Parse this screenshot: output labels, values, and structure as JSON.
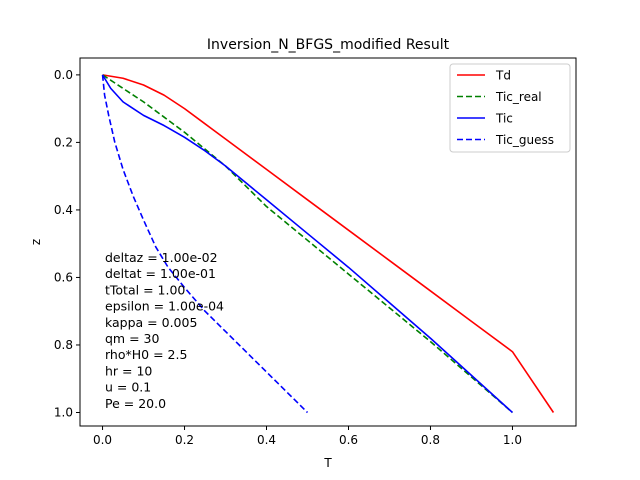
{
  "chart_data": {
    "type": "line",
    "title": "Inversion_N_BFGS_modified Result",
    "xlabel": "T",
    "ylabel": "z",
    "xlim": [
      -0.055,
      1.155
    ],
    "ylim": [
      1.04,
      -0.05
    ],
    "y_inverted": true,
    "grid": false,
    "legend_position": "top-right",
    "x_ticks": [
      {
        "value": 0.0,
        "label": "0.0"
      },
      {
        "value": 0.2,
        "label": "0.2"
      },
      {
        "value": 0.4,
        "label": "0.4"
      },
      {
        "value": 0.6,
        "label": "0.6"
      },
      {
        "value": 0.8,
        "label": "0.8"
      },
      {
        "value": 1.0,
        "label": "1.0"
      }
    ],
    "y_ticks": [
      {
        "value": 0.0,
        "label": "0.0"
      },
      {
        "value": 0.2,
        "label": "0.2"
      },
      {
        "value": 0.4,
        "label": "0.4"
      },
      {
        "value": 0.6,
        "label": "0.6"
      },
      {
        "value": 0.8,
        "label": "0.8"
      },
      {
        "value": 1.0,
        "label": "1.0"
      }
    ],
    "series": [
      {
        "name": "Td",
        "color": "#ff0000",
        "dash": "solid",
        "points": [
          [
            0.0,
            0.0
          ],
          [
            0.05,
            0.01
          ],
          [
            0.1,
            0.03
          ],
          [
            0.15,
            0.06
          ],
          [
            0.2,
            0.1
          ],
          [
            0.25,
            0.145
          ],
          [
            0.3,
            0.19
          ],
          [
            0.4,
            0.28
          ],
          [
            0.5,
            0.37
          ],
          [
            0.6,
            0.46
          ],
          [
            0.7,
            0.55
          ],
          [
            0.8,
            0.64
          ],
          [
            0.9,
            0.73
          ],
          [
            1.0,
            0.82
          ],
          [
            1.1,
            1.0
          ]
        ]
      },
      {
        "name": "Tic_real",
        "color": "#008000",
        "dash": "dashed",
        "points": [
          [
            0.0,
            0.0
          ],
          [
            0.05,
            0.04
          ],
          [
            0.1,
            0.08
          ],
          [
            0.15,
            0.125
          ],
          [
            0.2,
            0.17
          ],
          [
            0.25,
            0.22
          ],
          [
            0.3,
            0.27
          ],
          [
            0.35,
            0.33
          ],
          [
            0.4,
            0.39
          ],
          [
            0.5,
            0.49
          ],
          [
            0.6,
            0.59
          ],
          [
            0.7,
            0.69
          ],
          [
            0.8,
            0.79
          ],
          [
            0.9,
            0.895
          ],
          [
            1.0,
            1.0
          ]
        ]
      },
      {
        "name": "Tic",
        "color": "#0000ff",
        "dash": "solid",
        "points": [
          [
            0.0,
            0.0
          ],
          [
            0.02,
            0.04
          ],
          [
            0.05,
            0.08
          ],
          [
            0.1,
            0.12
          ],
          [
            0.15,
            0.15
          ],
          [
            0.2,
            0.185
          ],
          [
            0.25,
            0.225
          ],
          [
            0.3,
            0.27
          ],
          [
            0.35,
            0.32
          ],
          [
            0.4,
            0.37
          ],
          [
            0.5,
            0.47
          ],
          [
            0.6,
            0.57
          ],
          [
            0.7,
            0.675
          ],
          [
            0.8,
            0.78
          ],
          [
            0.9,
            0.89
          ],
          [
            1.0,
            1.0
          ]
        ]
      },
      {
        "name": "Tic_guess",
        "color": "#0000ff",
        "dash": "dashed",
        "points": [
          [
            0.0,
            0.0
          ],
          [
            0.005,
            0.06
          ],
          [
            0.015,
            0.12
          ],
          [
            0.03,
            0.2
          ],
          [
            0.05,
            0.28
          ],
          [
            0.075,
            0.36
          ],
          [
            0.1,
            0.43
          ],
          [
            0.13,
            0.51
          ],
          [
            0.16,
            0.57
          ],
          [
            0.2,
            0.63
          ],
          [
            0.25,
            0.7
          ],
          [
            0.3,
            0.76
          ],
          [
            0.35,
            0.82
          ],
          [
            0.4,
            0.88
          ],
          [
            0.45,
            0.94
          ],
          [
            0.5,
            1.0
          ]
        ]
      }
    ],
    "annotation_lines": [
      "deltaz = 1.00e-02",
      "deltat = 1.00e-01",
      "tTotal = 1.00",
      "epsilon = 1.00e-04",
      "kappa = 0.005",
      "qm = 30",
      "rho*H0 = 2.5",
      "hr = 10",
      "u = 0.1",
      "Pe = 20.0"
    ]
  }
}
